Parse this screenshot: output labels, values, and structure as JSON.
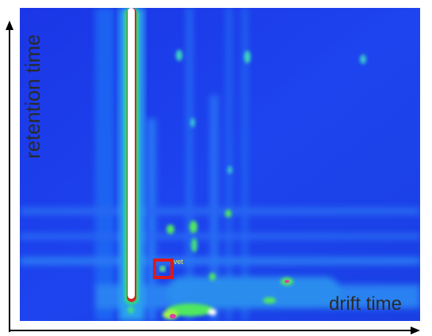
{
  "axes": {
    "y_label": "retention time",
    "x_label": "drift time"
  },
  "annotation": "vet"
}
